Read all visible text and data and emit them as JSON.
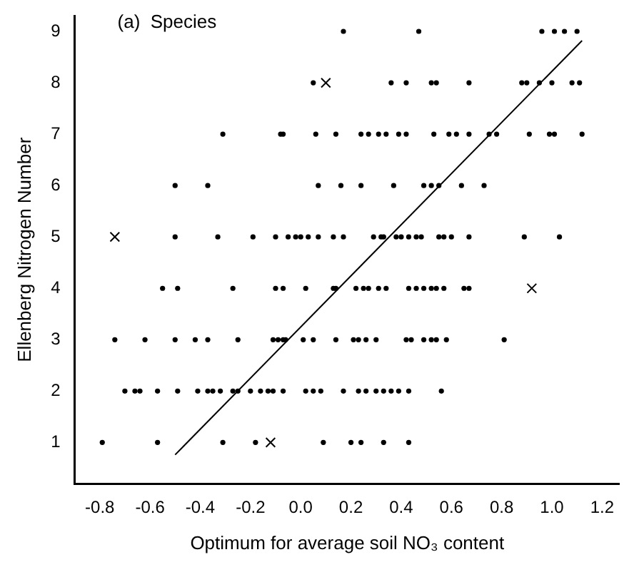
{
  "chart_data": {
    "type": "scatter",
    "title": "(a)  Species",
    "xlabel": "Optimum for average soil NO₃ content",
    "ylabel": "Ellenberg Nitrogen Number",
    "xlim": [
      -0.9,
      1.27
    ],
    "ylim": [
      0.2,
      9.3
    ],
    "xticks": [
      -0.8,
      -0.6,
      -0.4,
      -0.2,
      {
        "value": 0,
        "label": "0.0"
      },
      0.2,
      0.4,
      0.6,
      0.8,
      {
        "value": 1,
        "label": "1.0"
      },
      1.2
    ],
    "yticks": [
      1,
      2,
      3,
      4,
      5,
      6,
      7,
      8,
      9
    ],
    "grid": false,
    "legend": false,
    "series": [
      {
        "type": "scatter",
        "marker": "circle",
        "color": "#000000",
        "x": [
          0.17,
          0.47,
          0.96,
          1.01,
          1.05,
          1.1,
          0.05,
          0.36,
          0.42,
          0.52,
          0.54,
          0.67,
          0.88,
          0.9,
          0.95,
          1.0,
          1.08,
          1.11,
          -0.31,
          -0.08,
          -0.07,
          0.06,
          0.14,
          0.24,
          0.27,
          0.31,
          0.34,
          0.39,
          0.42,
          0.53,
          0.59,
          0.62,
          0.67,
          0.75,
          0.78,
          0.91,
          0.99,
          1.01,
          1.12,
          -0.5,
          -0.37,
          0.07,
          0.16,
          0.24,
          0.37,
          0.49,
          0.52,
          0.55,
          0.64,
          0.73,
          -0.5,
          -0.33,
          -0.19,
          -0.1,
          -0.05,
          -0.02,
          0.0,
          0.03,
          0.07,
          0.13,
          0.17,
          0.29,
          0.32,
          0.33,
          0.38,
          0.4,
          0.43,
          0.46,
          0.48,
          0.55,
          0.57,
          0.6,
          0.67,
          0.89,
          1.03,
          -0.55,
          -0.49,
          -0.27,
          -0.1,
          -0.07,
          0.02,
          0.13,
          0.14,
          0.22,
          0.25,
          0.27,
          0.31,
          0.34,
          0.43,
          0.46,
          0.49,
          0.52,
          0.54,
          0.57,
          0.65,
          0.67,
          -0.74,
          -0.62,
          -0.5,
          -0.42,
          -0.37,
          -0.25,
          -0.11,
          -0.09,
          -0.07,
          -0.06,
          0.01,
          0.05,
          0.14,
          0.21,
          0.23,
          0.26,
          0.3,
          0.42,
          0.44,
          0.49,
          0.52,
          0.54,
          0.58,
          0.81,
          -0.7,
          -0.66,
          -0.64,
          -0.57,
          -0.49,
          -0.41,
          -0.37,
          -0.35,
          -0.32,
          -0.27,
          -0.25,
          -0.2,
          -0.16,
          -0.13,
          -0.11,
          -0.07,
          0.02,
          0.05,
          0.08,
          0.17,
          0.23,
          0.26,
          0.3,
          0.33,
          0.36,
          0.39,
          0.43,
          0.56,
          -0.79,
          -0.57,
          -0.31,
          -0.18,
          0.09,
          0.2,
          0.24,
          0.33,
          0.43
        ],
        "values": [
          9,
          9,
          9,
          9,
          9,
          9,
          8,
          8,
          8,
          8,
          8,
          8,
          8,
          8,
          8,
          8,
          8,
          8,
          7,
          7,
          7,
          7,
          7,
          7,
          7,
          7,
          7,
          7,
          7,
          7,
          7,
          7,
          7,
          7,
          7,
          7,
          7,
          7,
          7,
          6,
          6,
          6,
          6,
          6,
          6,
          6,
          6,
          6,
          6,
          6,
          5,
          5,
          5,
          5,
          5,
          5,
          5,
          5,
          5,
          5,
          5,
          5,
          5,
          5,
          5,
          5,
          5,
          5,
          5,
          5,
          5,
          5,
          5,
          5,
          5,
          4,
          4,
          4,
          4,
          4,
          4,
          4,
          4,
          4,
          4,
          4,
          4,
          4,
          4,
          4,
          4,
          4,
          4,
          4,
          4,
          4,
          3,
          3,
          3,
          3,
          3,
          3,
          3,
          3,
          3,
          3,
          3,
          3,
          3,
          3,
          3,
          3,
          3,
          3,
          3,
          3,
          3,
          3,
          3,
          3,
          2,
          2,
          2,
          2,
          2,
          2,
          2,
          2,
          2,
          2,
          2,
          2,
          2,
          2,
          2,
          2,
          2,
          2,
          2,
          2,
          2,
          2,
          2,
          2,
          2,
          2,
          2,
          2,
          1,
          1,
          1,
          1,
          1,
          1,
          1,
          1,
          1
        ]
      },
      {
        "type": "scatter",
        "marker": "cross",
        "color": "#000000",
        "x": [
          -0.74,
          0.1,
          0.92,
          -0.12
        ],
        "values": [
          5,
          8,
          4,
          1
        ]
      },
      {
        "type": "line",
        "marker": "none",
        "line_style": "solid",
        "color": "#000000",
        "x": [
          -0.5,
          1.12
        ],
        "values": [
          0.76,
          8.82
        ]
      }
    ]
  }
}
